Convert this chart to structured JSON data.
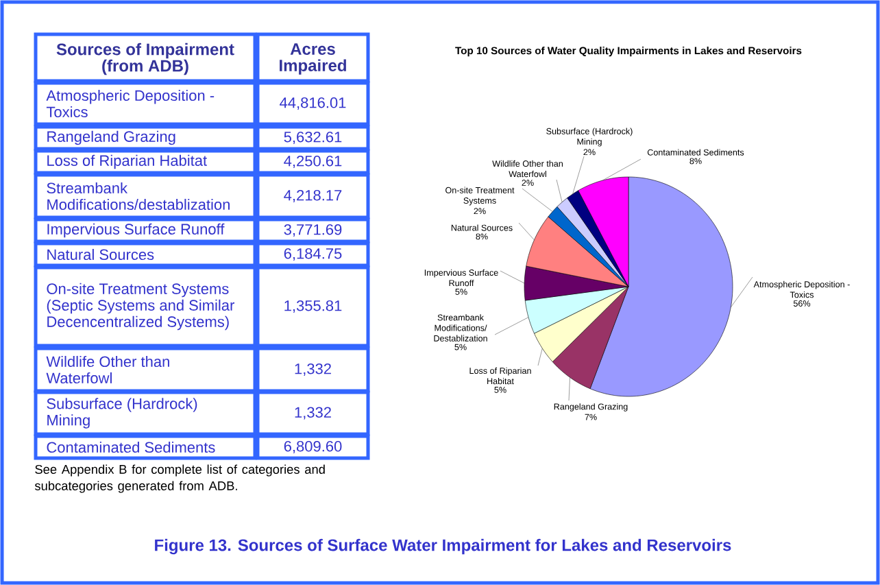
{
  "chart_data": [
    {
      "type": "other",
      "xlabel": "Sources of Impairment (from ADB)",
      "ylabel": "Acres Impaired",
      "categories": [
        "Atmospheric Deposition - Toxics",
        "Rangeland Grazing",
        "Loss of Riparian Habitat",
        "Streambank Modifications/destablization",
        "Impervious Surface Runoff",
        "Natural Sources",
        "On-site Treatment Systems (Septic Systems and Similar Decencentralized Systems)",
        "Wildlife Other than Waterfowl",
        "Subsurface (Hardrock) Mining",
        "Contaminated Sediments"
      ],
      "values": [
        44816.01,
        5632.61,
        4250.61,
        4218.17,
        3771.69,
        6184.75,
        1355.81,
        1332,
        1332,
        6809.6
      ],
      "value_labels": [
        "44,816.01",
        "5,632.61",
        "4,250.61",
        "4,218.17",
        "3,771.69",
        "6,184.75",
        "1,355.81",
        "1,332",
        "1,332",
        "6,809.60"
      ],
      "annotations": [
        "See Appendix B for complete list of categories and subcategories generated from ADB.",
        "Figure 13. Sources of Surface Water Impairment for Lakes and Reservoirs"
      ]
    },
    {
      "type": "pie",
      "title": "Top 10 Sources of Water Quality Impairments in Lakes and Reservoirs",
      "categories": [
        "Atmospheric Deposition - Toxics",
        "Rangeland Grazing",
        "Loss of Riparian Habitat",
        "Streambank Modifications/ Destablization",
        "Impervious Surface Runoff",
        "Natural Sources",
        "On-site Treatment Systems",
        "Wildlife Other than Waterfowl",
        "Subsurface (Hardrock) Mining",
        "Contaminated Sediments"
      ],
      "values": [
        56,
        7,
        5,
        5,
        5,
        8,
        2,
        2,
        2,
        8
      ],
      "colors": [
        "#9999ff",
        "#993366",
        "#ffffcc",
        "#ccffff",
        "#660066",
        "#ff8080",
        "#0066cc",
        "#ccccff",
        "#000080",
        "#ff00ff"
      ],
      "value_labels": [
        "56%",
        "7%",
        "5%",
        "5%",
        "5%",
        "8%",
        "2%",
        "2%",
        "2%",
        "8%"
      ]
    }
  ]
}
